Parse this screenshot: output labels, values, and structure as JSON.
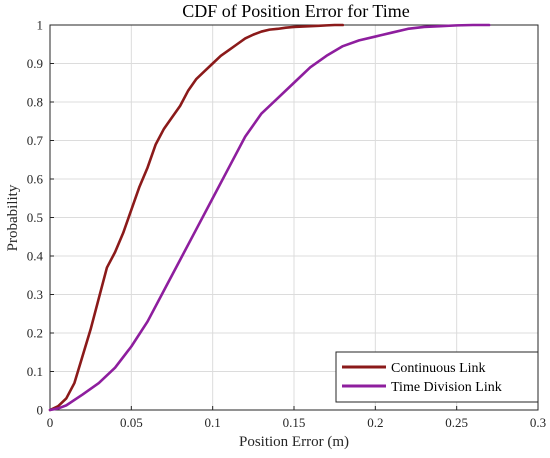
{
  "chart_data": {
    "type": "line",
    "title": "CDF of Position Error for Time",
    "xlabel": "Position Error (m)",
    "ylabel": "Probability",
    "xlim": [
      0,
      0.3
    ],
    "ylim": [
      0,
      1
    ],
    "xticks": [
      0,
      0.05,
      0.1,
      0.15,
      0.2,
      0.25,
      0.3
    ],
    "xtick_labels": [
      "0",
      "0.05",
      "0.1",
      "0.15",
      "0.2",
      "0.25",
      "0.3"
    ],
    "yticks": [
      0,
      0.1,
      0.2,
      0.3,
      0.4,
      0.5,
      0.6,
      0.7,
      0.8,
      0.9,
      1
    ],
    "ytick_labels": [
      "0",
      "0.1",
      "0.2",
      "0.3",
      "0.4",
      "0.5",
      "0.6",
      "0.7",
      "0.8",
      "0.9",
      "1"
    ],
    "grid": true,
    "legend_position": "bottom-right",
    "series": [
      {
        "name": "Continuous Link",
        "color": "#8b1a1a",
        "x": [
          0,
          0.005,
          0.01,
          0.015,
          0.02,
          0.025,
          0.03,
          0.035,
          0.04,
          0.045,
          0.05,
          0.055,
          0.06,
          0.065,
          0.07,
          0.075,
          0.08,
          0.085,
          0.09,
          0.095,
          0.1,
          0.105,
          0.11,
          0.115,
          0.12,
          0.125,
          0.13,
          0.135,
          0.14,
          0.145,
          0.15,
          0.155,
          0.16,
          0.165,
          0.17,
          0.175,
          0.18
        ],
        "y": [
          0,
          0.01,
          0.03,
          0.07,
          0.14,
          0.21,
          0.29,
          0.37,
          0.41,
          0.46,
          0.52,
          0.58,
          0.63,
          0.69,
          0.73,
          0.76,
          0.79,
          0.83,
          0.86,
          0.88,
          0.9,
          0.92,
          0.935,
          0.95,
          0.965,
          0.975,
          0.983,
          0.988,
          0.99,
          0.993,
          0.995,
          0.996,
          0.997,
          0.998,
          0.999,
          1.0,
          1.0
        ]
      },
      {
        "name": "Time Division Link",
        "color": "#8e1e9e",
        "x": [
          0,
          0.005,
          0.01,
          0.02,
          0.03,
          0.04,
          0.05,
          0.06,
          0.07,
          0.08,
          0.09,
          0.1,
          0.11,
          0.12,
          0.13,
          0.14,
          0.15,
          0.16,
          0.17,
          0.18,
          0.19,
          0.2,
          0.21,
          0.22,
          0.23,
          0.24,
          0.25,
          0.26,
          0.27
        ],
        "y": [
          0,
          0.004,
          0.012,
          0.04,
          0.07,
          0.11,
          0.165,
          0.23,
          0.31,
          0.39,
          0.47,
          0.55,
          0.63,
          0.71,
          0.77,
          0.81,
          0.85,
          0.89,
          0.92,
          0.945,
          0.96,
          0.97,
          0.98,
          0.99,
          0.995,
          0.997,
          0.999,
          1.0,
          1.0
        ]
      }
    ]
  }
}
